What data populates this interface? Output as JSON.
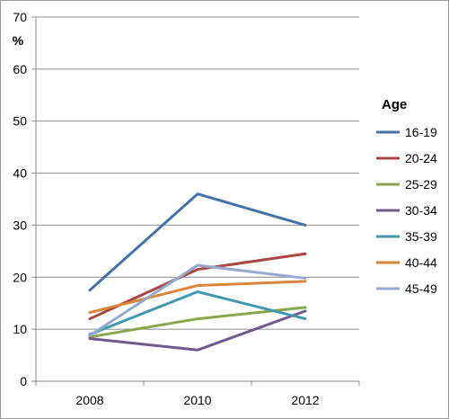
{
  "chart_data": {
    "type": "line",
    "title": "",
    "xlabel": "",
    "ylabel": "%",
    "ylim": [
      0,
      70
    ],
    "yticks": [
      0,
      10,
      20,
      30,
      40,
      50,
      60,
      70
    ],
    "categories": [
      "2008",
      "2010",
      "2012"
    ],
    "grid": "horizontal",
    "legend": {
      "title": "Age",
      "placement": "right"
    },
    "series": [
      {
        "name": "16-19",
        "color": "#4572a7",
        "values": [
          17.5,
          36,
          30
        ]
      },
      {
        "name": "20-24",
        "color": "#aa4643",
        "values": [
          12,
          21.5,
          24.5
        ]
      },
      {
        "name": "25-29",
        "color": "#89a54e",
        "values": [
          8.5,
          12,
          14.2
        ]
      },
      {
        "name": "30-34",
        "color": "#71588f",
        "values": [
          8.2,
          6,
          13.5
        ]
      },
      {
        "name": "35-39",
        "color": "#4198af",
        "values": [
          9,
          17.2,
          12
        ]
      },
      {
        "name": "40-44",
        "color": "#db843d",
        "values": [
          13.2,
          18.4,
          19.2
        ]
      },
      {
        "name": "45-49",
        "color": "#93a9cf",
        "values": [
          8.8,
          22.3,
          19.8
        ]
      }
    ]
  }
}
